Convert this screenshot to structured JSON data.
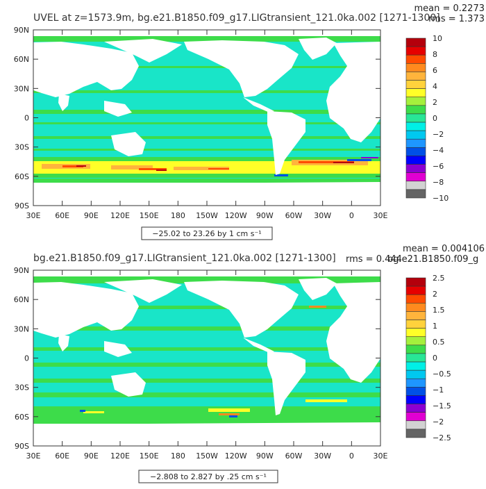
{
  "panels": [
    {
      "title": "UVEL at z=1573.9m, bg.e21.B1850.f09_g17.LIGtransient_121.0ka.002 [1271-1300]",
      "mean_label": "mean = 0.2273",
      "rms_label": "rms = 1.373",
      "range_label": "−25.02 to 23.26 by 1 cm s⁻¹",
      "colorbar_labels": [
        "10",
        "8",
        "6",
        "4",
        "2",
        "0",
        "−2",
        "−4",
        "−6",
        "−8",
        "−10"
      ]
    },
    {
      "title": "bg.e21.B1850.f09_g17.LIGtransient_121.0ka.002 [1271-1300]",
      "mean_label": "mean = 0.004106",
      "rms_label": "rms = 0.444",
      "extra_label": "bg.e21.B1850.f09_g",
      "range_label": "−2.808 to 2.827 by .25 cm s⁻¹",
      "colorbar_labels": [
        "2.5",
        "2",
        "1.5",
        "1",
        "0.5",
        "0",
        "−0.5",
        "−1",
        "−1.5",
        "−2",
        "−2.5"
      ]
    }
  ],
  "lat_labels": [
    "90N",
    "60N",
    "30N",
    "0",
    "30S",
    "60S",
    "90S"
  ],
  "lon_labels": [
    "30E",
    "60E",
    "90E",
    "120E",
    "150E",
    "180",
    "150W",
    "120W",
    "90W",
    "60W",
    "30W",
    "0",
    "30E"
  ],
  "colors": {
    "ocean": "#19e5c8",
    "land": "#ffffff",
    "zero_band": "#3ddc4a",
    "colorbar": [
      "#b4000c",
      "#e60000",
      "#ff4b00",
      "#ff8a1e",
      "#ffb43c",
      "#ffd23c",
      "#ffff28",
      "#a5f03c",
      "#3ddc4a",
      "#28e696",
      "#00f0e6",
      "#00c8f0",
      "#1e96ff",
      "#0050e6",
      "#0000ff",
      "#8c00d2",
      "#e100d2",
      "#d2d2d2",
      "#646464"
    ]
  }
}
